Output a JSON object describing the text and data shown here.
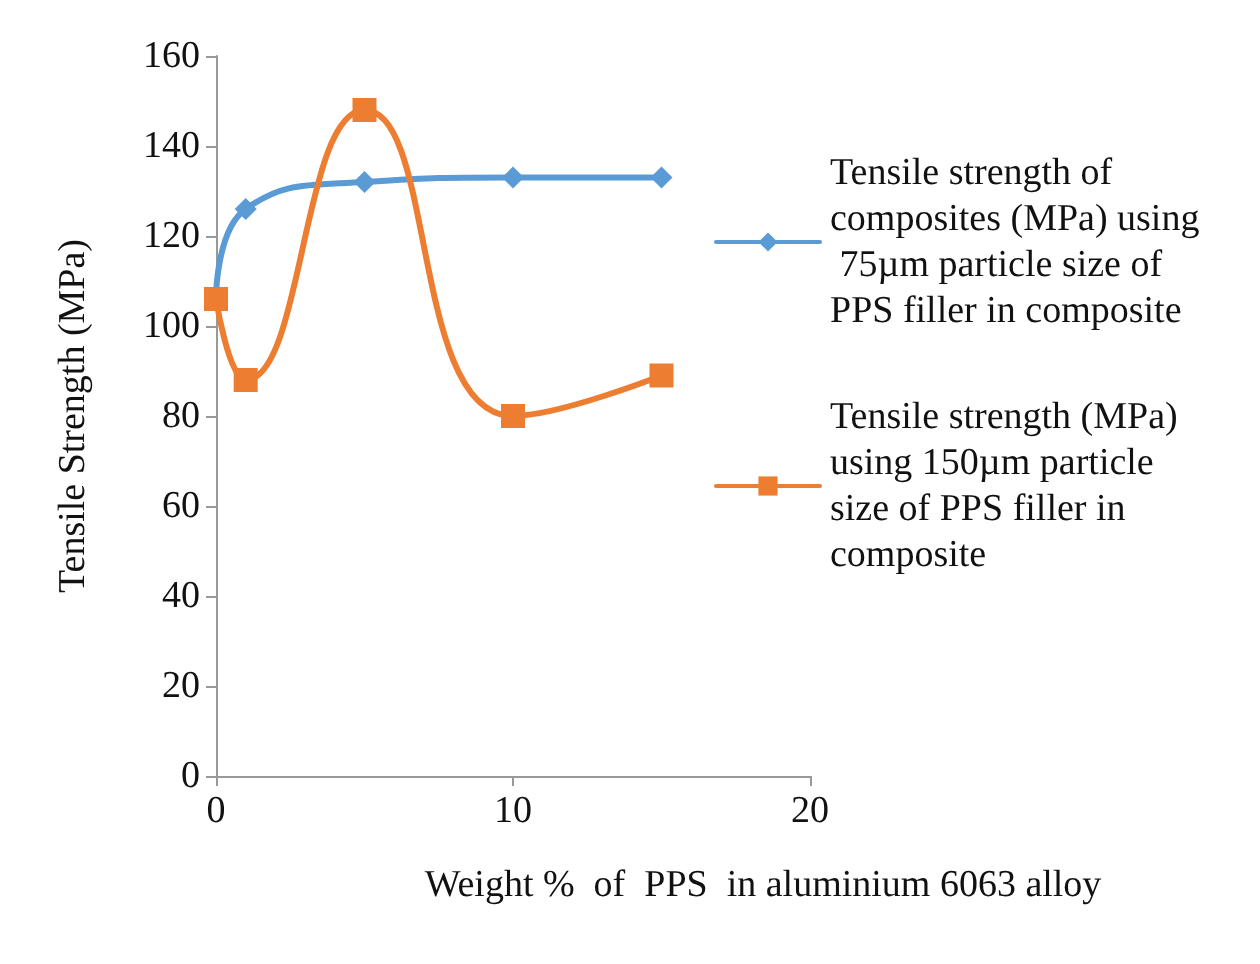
{
  "chart_data": {
    "type": "line",
    "xlabel": "Weight %  of  PPS  in aluminium 6063 alloy",
    "ylabel": "Tensile Strength (MPa)",
    "x": [
      0,
      1,
      5,
      10,
      15
    ],
    "series": [
      {
        "name": "Tensile strength of composites (MPa) using 75µm particle size of PPS filler in composite",
        "color": "#5b9bd5",
        "marker": "diamond",
        "values": [
          106,
          126,
          132,
          133,
          133
        ]
      },
      {
        "name": "Tensile strength (MPa) using 150µm particle size of PPS filler in composite",
        "color": "#ed7d31",
        "marker": "square",
        "values": [
          106,
          88,
          148,
          80,
          89
        ]
      }
    ],
    "xlim": [
      0,
      20
    ],
    "xticks": [
      0,
      10,
      20
    ],
    "ylim": [
      0,
      160
    ],
    "yticks": [
      0,
      20,
      40,
      60,
      80,
      100,
      120,
      140,
      160
    ],
    "grid": false,
    "legend": "right",
    "line_style": "solid"
  }
}
